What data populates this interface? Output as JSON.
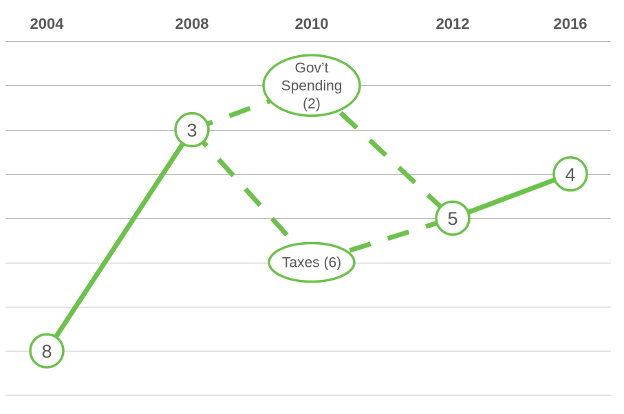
{
  "chart_data": {
    "type": "line",
    "title": "",
    "xlabel": "",
    "ylabel": "",
    "x_ticks": [
      "2004",
      "2008",
      "2010",
      "2012",
      "2016"
    ],
    "ylim": [
      1,
      9
    ],
    "y_inverted": true,
    "grid": "horizontal",
    "colors": {
      "line": "#6cc24a",
      "text": "#595959",
      "grid": "#b3b3b3",
      "node_fill": "#ffffff"
    },
    "main_path": [
      {
        "x": "2004",
        "y": 8,
        "label": "8"
      },
      {
        "x": "2008",
        "y": 3,
        "label": "3"
      },
      {
        "x": "2012",
        "y": 5,
        "label": "5"
      },
      {
        "x": "2016",
        "y": 4,
        "label": "4"
      }
    ],
    "branches": [
      {
        "x": "2010",
        "y": 2,
        "label_lines": [
          "Gov’t",
          "Spending",
          "(2)"
        ]
      },
      {
        "x": "2010",
        "y": 6,
        "label_lines": [
          "Taxes (6)"
        ]
      }
    ],
    "solid_segments": [
      [
        0,
        1
      ],
      [
        2,
        3
      ]
    ],
    "dashed_via_branches": {
      "from": 1,
      "to": 2
    }
  }
}
